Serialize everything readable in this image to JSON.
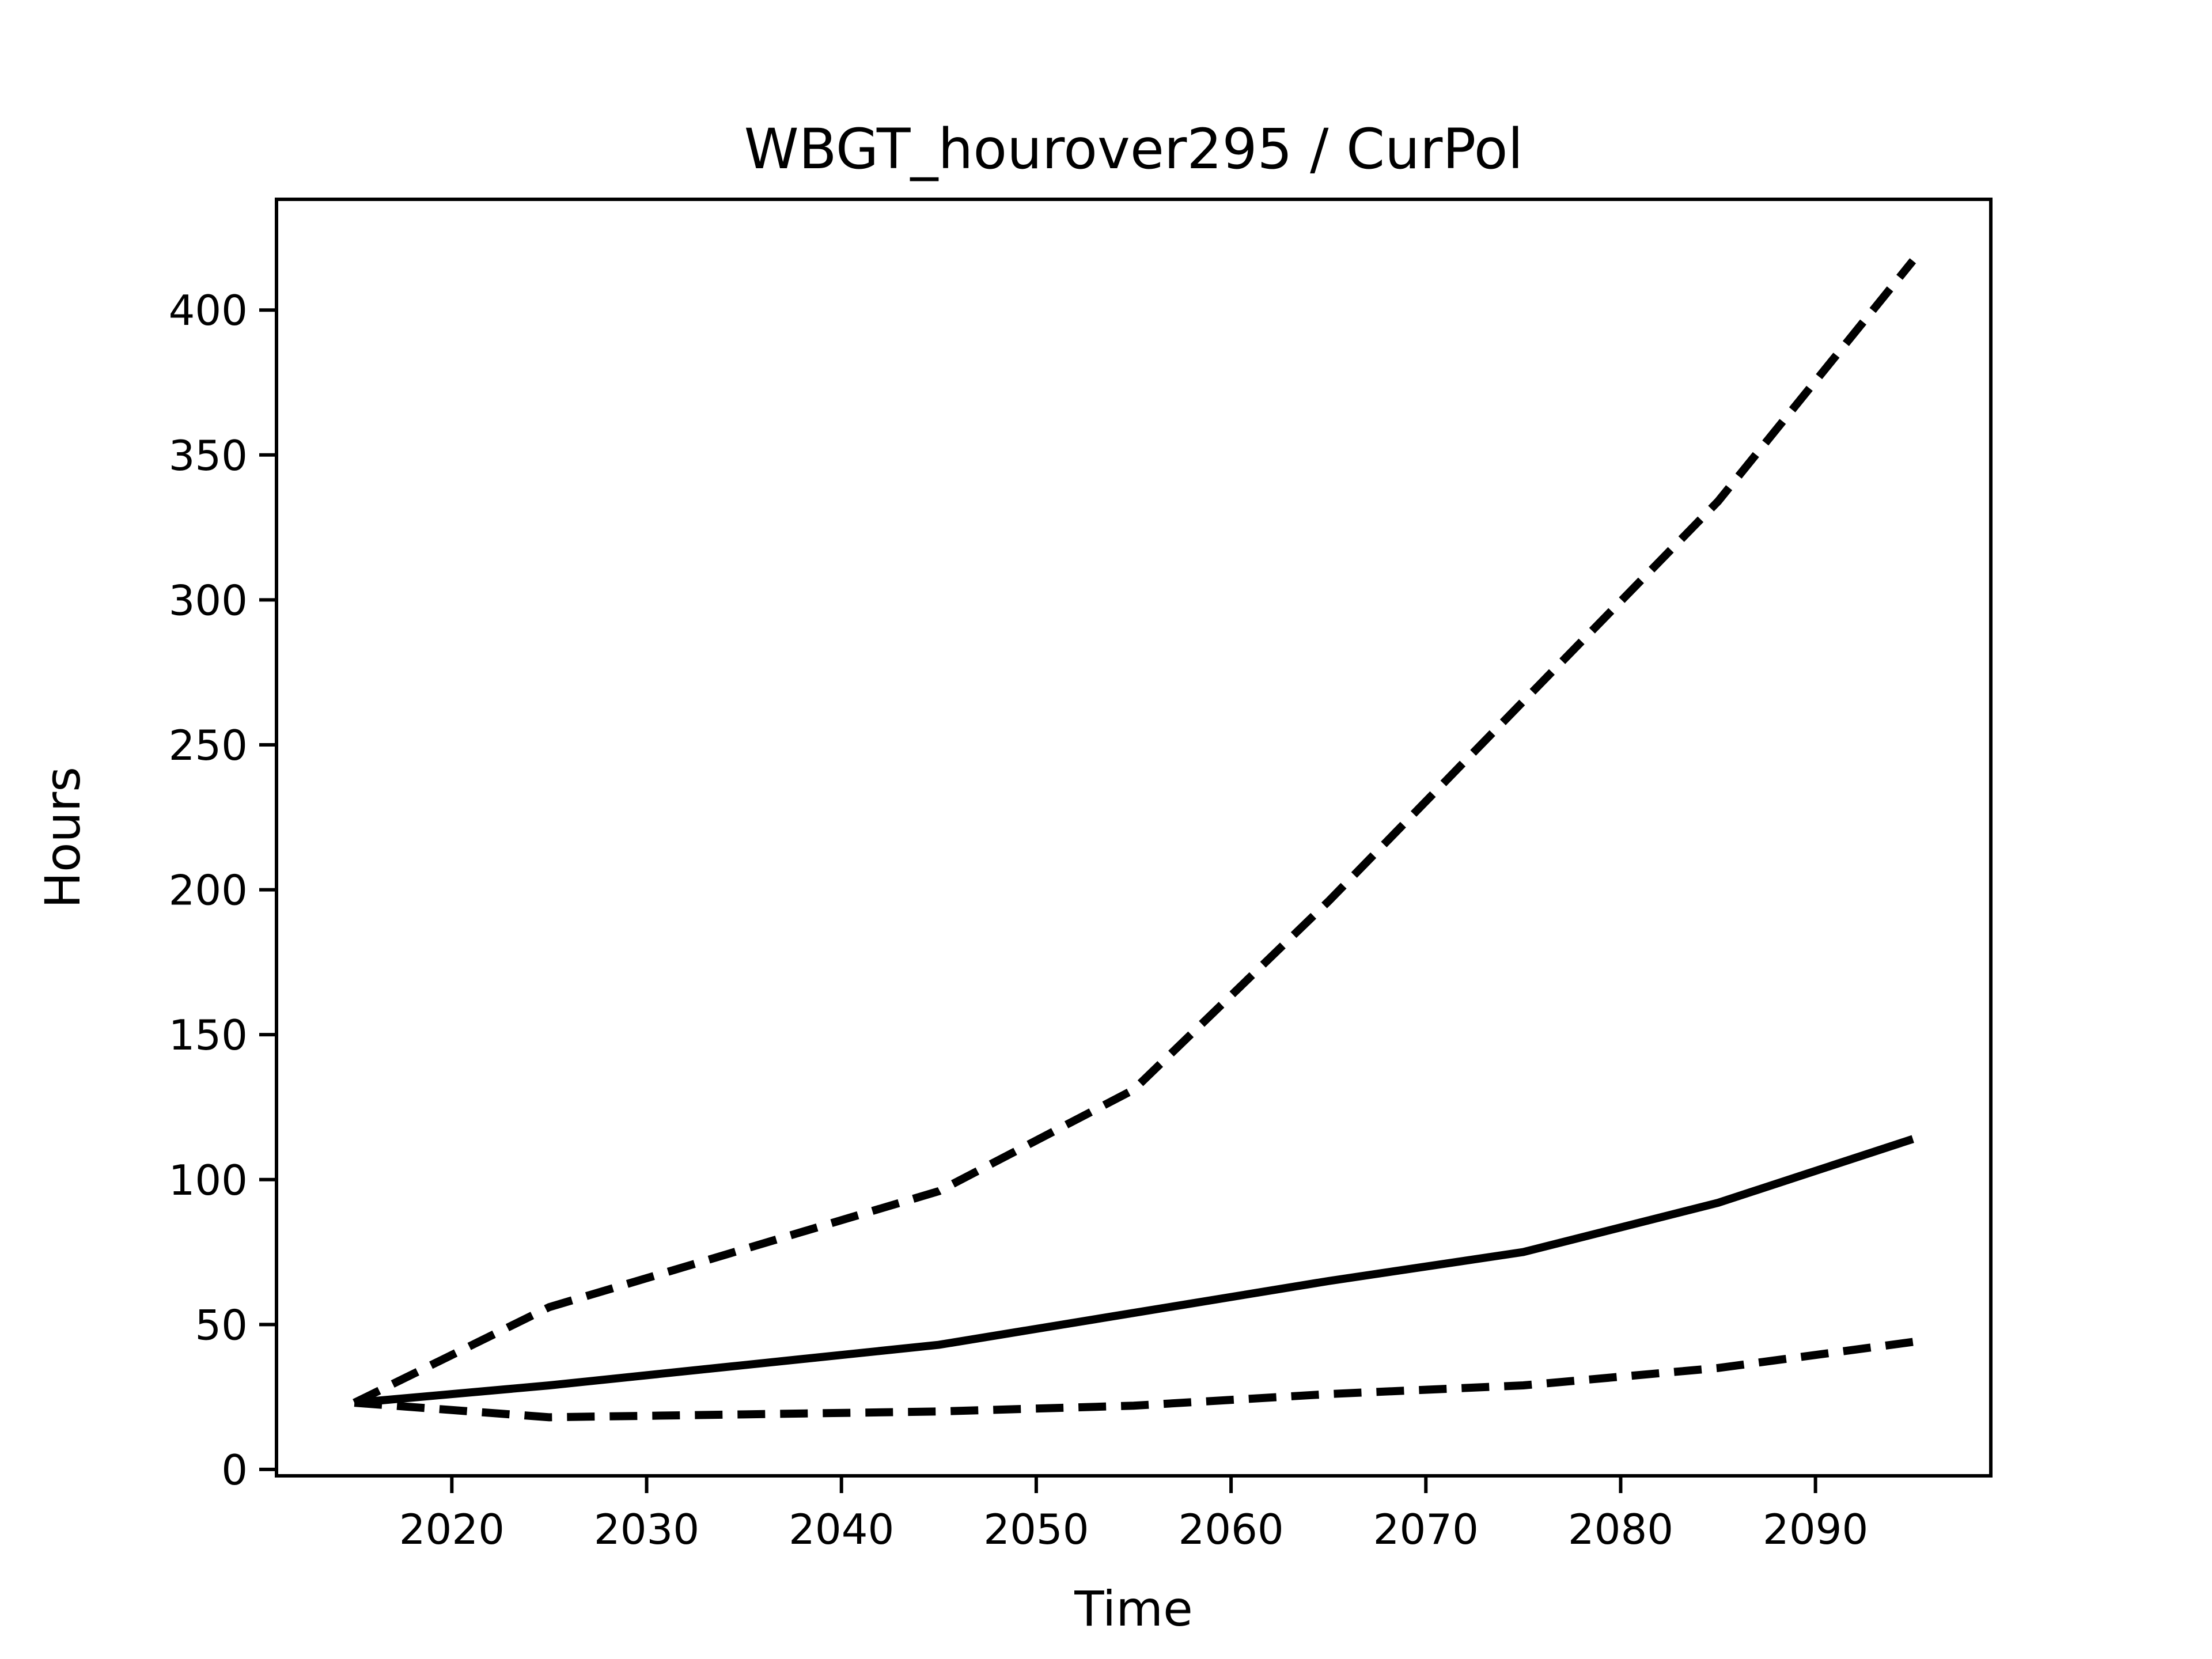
{
  "figure": {
    "background": "#ffffff",
    "foreground": "#000000"
  },
  "chart_data": {
    "type": "line",
    "title": "WBGT_hourover295 / CurPol",
    "xlabel": "Time",
    "ylabel": "Hours",
    "x": [
      2015,
      2025,
      2035,
      2045,
      2055,
      2065,
      2075,
      2085,
      2095
    ],
    "series": [
      {
        "name": "upper-bound-dashed",
        "style": "dashed",
        "values": [
          23,
          56,
          76,
          96,
          131,
          196,
          265,
          334,
          417
        ]
      },
      {
        "name": "central-solid",
        "style": "solid",
        "values": [
          23,
          29,
          36,
          43,
          54,
          65,
          75,
          92,
          114
        ]
      },
      {
        "name": "lower-bound-dashed",
        "style": "dashed",
        "values": [
          23,
          18,
          19,
          20,
          22,
          26,
          29,
          35,
          44
        ]
      }
    ],
    "xticks": [
      2020,
      2030,
      2040,
      2050,
      2060,
      2070,
      2080,
      2090
    ],
    "xtick_labels": [
      "2020",
      "2030",
      "2040",
      "2050",
      "2060",
      "2070",
      "2080",
      "2090"
    ],
    "yticks": [
      0,
      50,
      100,
      150,
      200,
      250,
      300,
      350,
      400
    ],
    "ytick_labels": [
      "0",
      "50",
      "100",
      "150",
      "200",
      "250",
      "300",
      "350",
      "400"
    ],
    "xlim": [
      2011,
      2099
    ],
    "ylim": [
      -2.2,
      438.2
    ],
    "grid": false,
    "legend": null,
    "line_color": "#000000",
    "background": "#ffffff"
  }
}
